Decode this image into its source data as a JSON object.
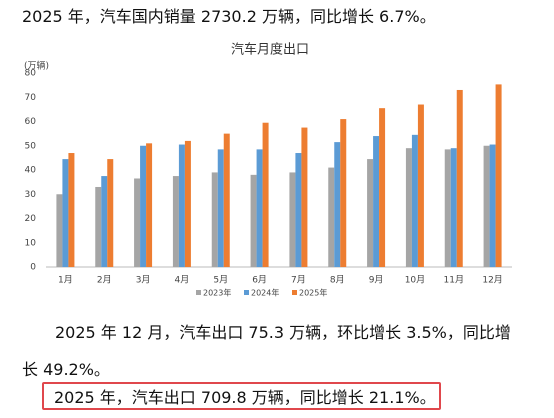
{
  "paragraphs": [
    "2025 年，汽车国内销量 2730.2 万辆，同比增长 6.7%。",
    "2025 年 12 月，汽车出口 75.3 万辆，环比增长 3.5%，同比增长 49.2%。",
    "2025 年，汽车出口 709.8 万辆，同比增长 21.1%。"
  ],
  "chart_data": {
    "type": "bar",
    "title": "汽车月度出口",
    "y_unit": "(万辆)",
    "categories": [
      "1月",
      "2月",
      "3月",
      "4月",
      "5月",
      "6月",
      "7月",
      "8月",
      "9月",
      "10月",
      "11月",
      "12月"
    ],
    "series": [
      {
        "name": "2023年",
        "color": "#a5a5a5",
        "values": [
          30,
          33,
          36.5,
          37.5,
          39,
          38,
          39,
          41,
          44.5,
          49,
          48.5,
          50
        ]
      },
      {
        "name": "2024年",
        "color": "#5b9bd5",
        "values": [
          44.5,
          37.5,
          50,
          50.5,
          48.5,
          48.5,
          47,
          51.5,
          54,
          54.5,
          49,
          50.5
        ]
      },
      {
        "name": "2025年",
        "color": "#ed7d31",
        "values": [
          47,
          44.5,
          51,
          52,
          55,
          59.5,
          57.5,
          61,
          65.5,
          67,
          73,
          75.3
        ]
      }
    ],
    "ylim": [
      0,
      80
    ],
    "yticks": [
      0,
      10,
      20,
      30,
      40,
      50,
      60,
      70,
      80
    ],
    "grid": false
  }
}
